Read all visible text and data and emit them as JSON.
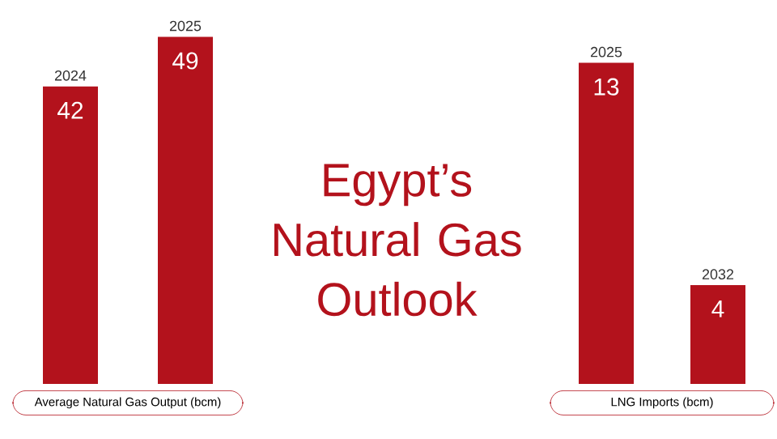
{
  "chart_data": [
    {
      "type": "bar",
      "xlabel": "Average Natural Gas Output (bcm)",
      "categories": [
        "2024",
        "2025"
      ],
      "values": [
        42,
        49
      ],
      "color": "#b3121c",
      "data_labels": true
    },
    {
      "type": "other",
      "title": "Egypt’s Natural Gas Outlook"
    },
    {
      "type": "bar",
      "xlabel": "LNG Imports (bcm)",
      "categories": [
        "2025",
        "2032"
      ],
      "values": [
        13,
        4
      ],
      "color": "#b3121c",
      "data_labels": true
    }
  ]
}
